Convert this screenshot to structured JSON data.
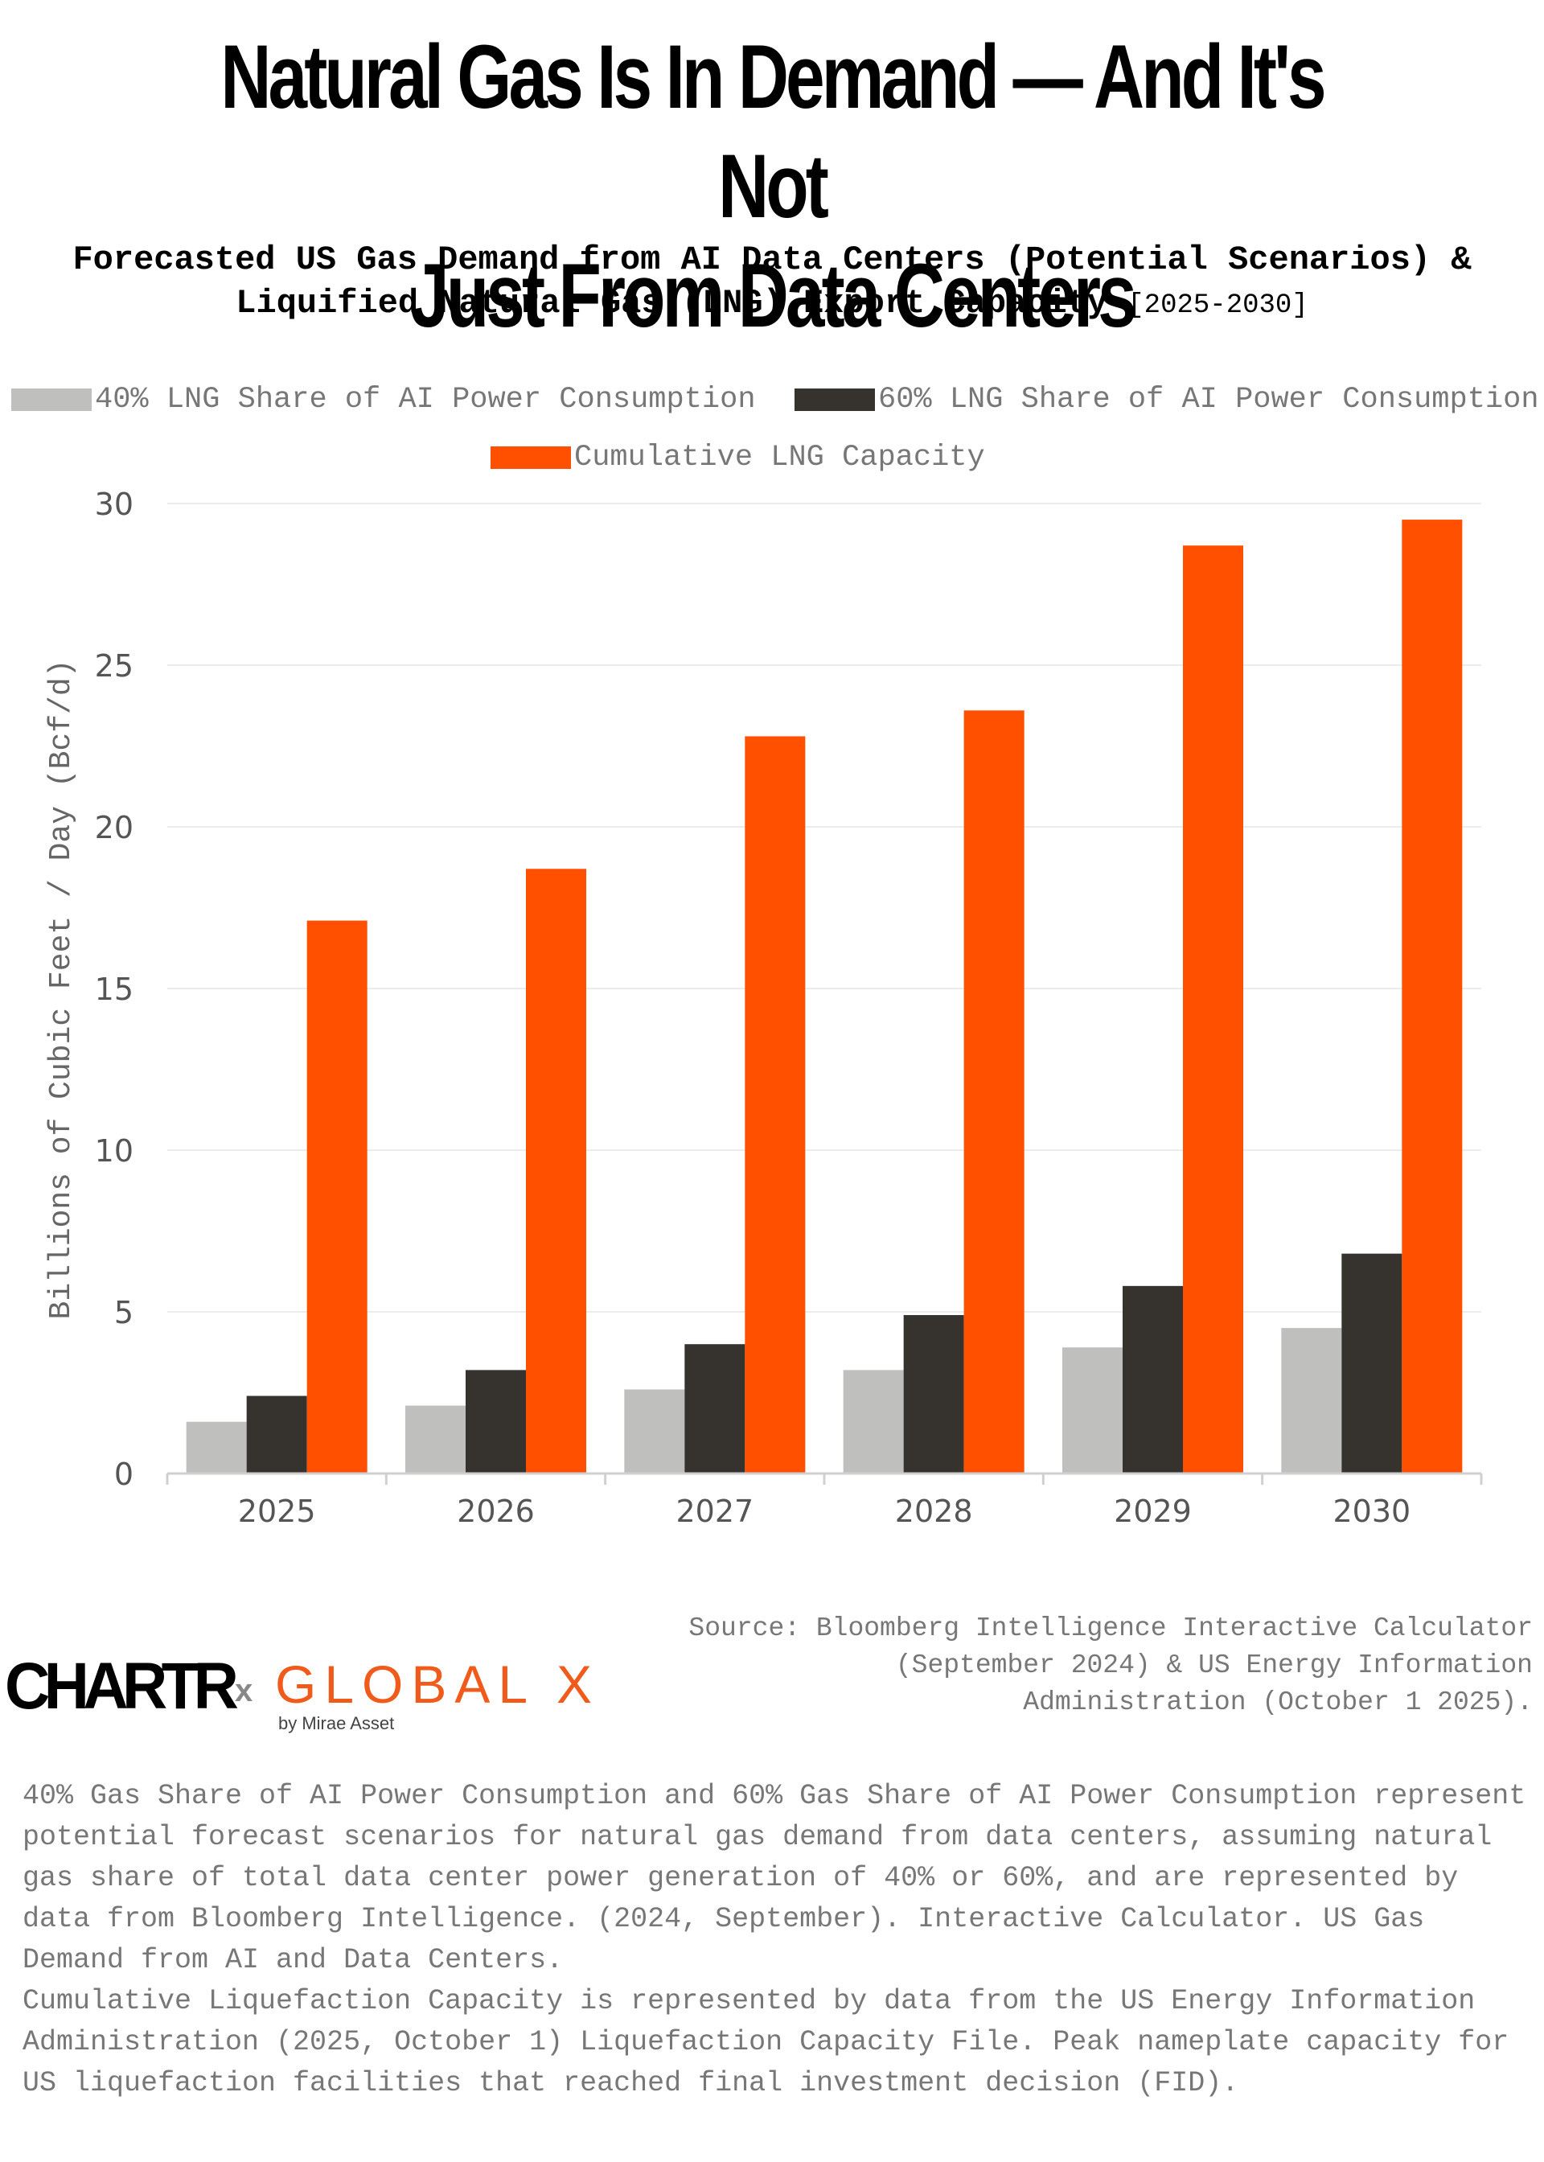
{
  "header": {
    "title_line1": "Natural Gas Is In Demand — And It's Not",
    "title_line2": "Just From Data Centers",
    "subtitle_line1": "Forecasted US Gas Demand from AI Data Centers (Potential Scenarios) &",
    "subtitle_line2": "Liquified Natural Gas (LNG) Export Capacity",
    "subtitle_range": "[2025-2030]"
  },
  "legend": [
    {
      "label": "40% LNG Share of AI Power Consumption",
      "color": "#bfbfbd"
    },
    {
      "label": "60% LNG Share of AI Power Consumption",
      "color": "#36332f"
    },
    {
      "label": "Cumulative LNG Capacity",
      "color": "#ff5000"
    }
  ],
  "chart_data": {
    "type": "bar",
    "title": "Forecasted US Gas Demand from AI Data Centers (Potential Scenarios) & Liquified Natural Gas (LNG) Export Capacity [2025-2030]",
    "xlabel": "",
    "ylabel": "Billions of Cubic Feet / Day (Bcf/d)",
    "categories": [
      "2025",
      "2026",
      "2027",
      "2028",
      "2029",
      "2030"
    ],
    "series": [
      {
        "name": "40% LNG Share of AI Power Consumption",
        "color": "#bfbfbd",
        "values": [
          1.6,
          2.1,
          2.6,
          3.2,
          3.9,
          4.5
        ]
      },
      {
        "name": "60% LNG Share of AI Power Consumption",
        "color": "#36332f",
        "values": [
          2.4,
          3.2,
          4.0,
          4.9,
          5.8,
          6.8
        ]
      },
      {
        "name": "Cumulative LNG Capacity",
        "color": "#ff5000",
        "values": [
          17.1,
          18.7,
          22.8,
          23.6,
          28.7,
          29.5
        ]
      }
    ],
    "ylim": [
      0,
      30
    ],
    "yticks": [
      0,
      5,
      10,
      15,
      20,
      25,
      30
    ],
    "grid": true,
    "legend_position": "top"
  },
  "footer": {
    "logo_chartr": "CHARTR",
    "logo_x": "x",
    "logo_globalx": "GLOBAL X",
    "logo_mirae": "by Mirae Asset",
    "source_line1": "Source: Bloomberg Intelligence Interactive Calculator",
    "source_line2": "(September 2024) & US Energy Information",
    "source_line3": "Administration (October 1 2025).",
    "note1": "40% Gas Share of AI Power Consumption and 60% Gas Share of AI Power Consumption represent potential forecast scenarios for natural gas demand from data centers, assuming natural gas share of total data center power generation of 40% or 60%, and are represented by data from Bloomberg Intelligence. (2024, September). Interactive Calculator. US Gas Demand from AI and Data Centers.",
    "note2": "Cumulative Liquefaction Capacity is represented by data from the US Energy Information Administration (2025, October 1) Liquefaction Capacity File. Peak nameplate capacity for US liquefaction facilities that reached final investment decision (FID)."
  }
}
